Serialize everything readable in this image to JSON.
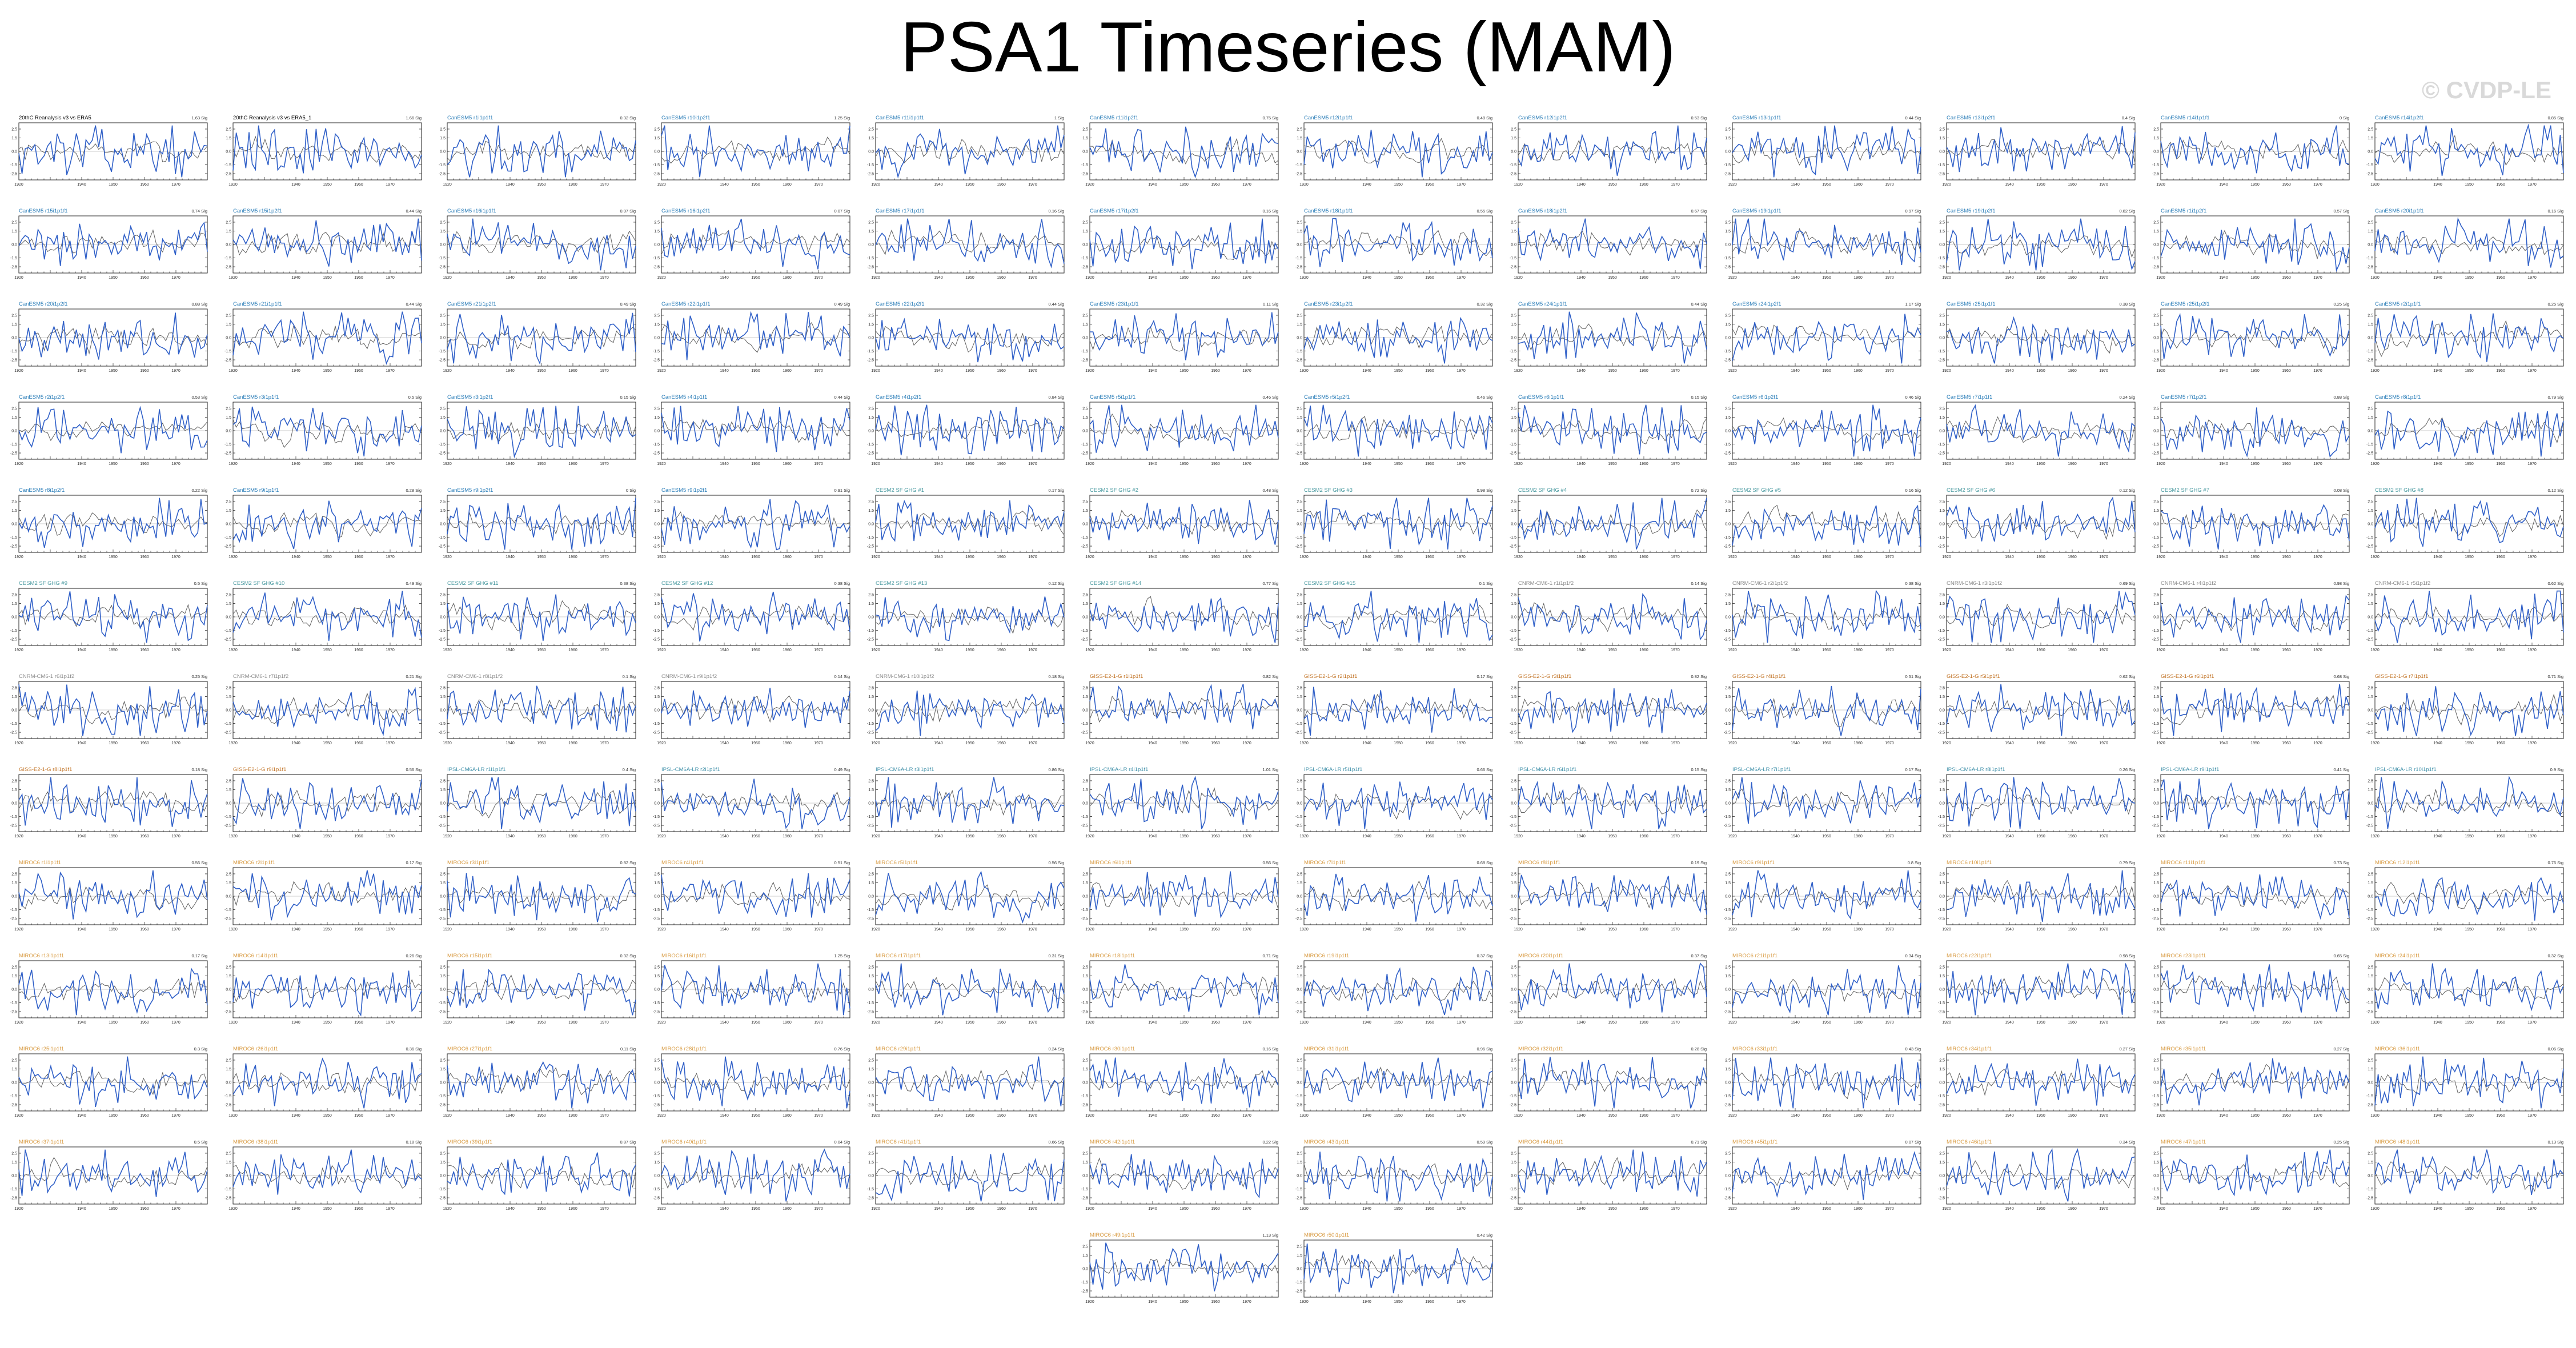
{
  "page": {
    "title": "PSA1 Timeseries (MAM)",
    "watermark": "© CVDP-LE"
  },
  "colors": {
    "model": "#3060c8",
    "obs": "#606060",
    "zero": "#999999",
    "title_obs": "#000000",
    "title_cesm": "#2a7db8",
    "title_cesm2": "#4a9aa0",
    "title_cmip": "#8a8a8a",
    "title_gfdl": "#c07020",
    "title_ipsl": "#3e8fa8",
    "title_miroc": "#d89a40"
  },
  "chart_data": {
    "type": "line",
    "title": "PSA1 Timeseries (MAM)",
    "x_ticks": [
      "1920",
      "1940",
      "1950",
      "1960",
      "1970"
    ],
    "y_ticks": [
      "2.5",
      "1.5",
      "0.0",
      "-1.5",
      "-2.5"
    ],
    "xlim": [
      1920,
      1980
    ],
    "ylim": [
      -3.2,
      3.2
    ],
    "series_note": "",
    "panels": [
      {
        "title": "20thC Reanalysis v3 vs ERA5",
        "label": "1.63 Sig",
        "group": "obs"
      },
      {
        "title": "20thC Reanalysis v3 vs ERA5_1",
        "label": "1.66 Sig",
        "group": "obs"
      },
      {
        "title": "CanESM5 r1i1p1f1",
        "label": "0.32 Sig",
        "group": "cesm"
      },
      {
        "title": "CanESM5 r10i1p2f1",
        "label": "1.25 Sig",
        "group": "cesm"
      },
      {
        "title": "CanESM5 r11i1p1f1",
        "label": "1 Sig",
        "group": "cesm"
      },
      {
        "title": "CanESM5 r11i1p2f1",
        "label": "0.75 Sig",
        "group": "cesm"
      },
      {
        "title": "CanESM5 r12i1p1f1",
        "label": "0.48 Sig",
        "group": "cesm"
      },
      {
        "title": "CanESM5 r12i1p2f1",
        "label": "0.53 Sig",
        "group": "cesm"
      },
      {
        "title": "CanESM5 r13i1p1f1",
        "label": "0.44 Sig",
        "group": "cesm"
      },
      {
        "title": "CanESM5 r13i1p2f1",
        "label": "0.4 Sig",
        "group": "cesm"
      },
      {
        "title": "CanESM5 r14i1p1f1",
        "label": "0 Sig",
        "group": "cesm"
      },
      {
        "title": "CanESM5 r14i1p2f1",
        "label": "0.85 Sig",
        "group": "cesm"
      },
      {
        "title": "CanESM5 r15i1p1f1",
        "label": "0.74 Sig",
        "group": "cesm"
      },
      {
        "title": "CanESM5 r15i1p2f1",
        "label": "0.44 Sig",
        "group": "cesm"
      },
      {
        "title": "CanESM5 r16i1p1f1",
        "label": "0.07 Sig",
        "group": "cesm"
      },
      {
        "title": "CanESM5 r16i1p2f1",
        "label": "0.07 Sig",
        "group": "cesm"
      },
      {
        "title": "CanESM5 r17i1p1f1",
        "label": "0.16 Sig",
        "group": "cesm"
      },
      {
        "title": "CanESM5 r17i1p2f1",
        "label": "0.16 Sig",
        "group": "cesm"
      },
      {
        "title": "CanESM5 r18i1p1f1",
        "label": "0.55 Sig",
        "group": "cesm"
      },
      {
        "title": "CanESM5 r18i1p2f1",
        "label": "0.67 Sig",
        "group": "cesm"
      },
      {
        "title": "CanESM5 r19i1p1f1",
        "label": "0.97 Sig",
        "group": "cesm"
      },
      {
        "title": "CanESM5 r19i1p2f1",
        "label": "0.82 Sig",
        "group": "cesm"
      },
      {
        "title": "CanESM5 r1i1p2f1",
        "label": "0.57 Sig",
        "group": "cesm"
      },
      {
        "title": "CanESM5 r20i1p1f1",
        "label": "0.16 Sig",
        "group": "cesm"
      },
      {
        "title": "CanESM5 r20i1p2f1",
        "label": "0.88 Sig",
        "group": "cesm"
      },
      {
        "title": "CanESM5 r21i1p1f1",
        "label": "0.44 Sig",
        "group": "cesm"
      },
      {
        "title": "CanESM5 r21i1p2f1",
        "label": "0.49 Sig",
        "group": "cesm"
      },
      {
        "title": "CanESM5 r22i1p1f1",
        "label": "0.49 Sig",
        "group": "cesm"
      },
      {
        "title": "CanESM5 r22i1p2f1",
        "label": "0.44 Sig",
        "group": "cesm"
      },
      {
        "title": "CanESM5 r23i1p1f1",
        "label": "0.11 Sig",
        "group": "cesm"
      },
      {
        "title": "CanESM5 r23i1p2f1",
        "label": "0.32 Sig",
        "group": "cesm"
      },
      {
        "title": "CanESM5 r24i1p1f1",
        "label": "0.44 Sig",
        "group": "cesm"
      },
      {
        "title": "CanESM5 r24i1p2f1",
        "label": "1.17 Sig",
        "group": "cesm"
      },
      {
        "title": "CanESM5 r25i1p1f1",
        "label": "0.38 Sig",
        "group": "cesm"
      },
      {
        "title": "CanESM5 r25i1p2f1",
        "label": "0.25 Sig",
        "group": "cesm"
      },
      {
        "title": "CanESM5 r2i1p1f1",
        "label": "0.25 Sig",
        "group": "cesm"
      },
      {
        "title": "CanESM5 r2i1p2f1",
        "label": "0.53 Sig",
        "group": "cesm"
      },
      {
        "title": "CanESM5 r3i1p1f1",
        "label": "0.5 Sig",
        "group": "cesm"
      },
      {
        "title": "CanESM5 r3i1p2f1",
        "label": "0.15 Sig",
        "group": "cesm"
      },
      {
        "title": "CanESM5 r4i1p1f1",
        "label": "0.44 Sig",
        "group": "cesm"
      },
      {
        "title": "CanESM5 r4i1p2f1",
        "label": "0.84 Sig",
        "group": "cesm"
      },
      {
        "title": "CanESM5 r5i1p1f1",
        "label": "0.46 Sig",
        "group": "cesm"
      },
      {
        "title": "CanESM5 r5i1p2f1",
        "label": "0.46 Sig",
        "group": "cesm"
      },
      {
        "title": "CanESM5 r6i1p1f1",
        "label": "0.15 Sig",
        "group": "cesm"
      },
      {
        "title": "CanESM5 r6i1p2f1",
        "label": "0.46 Sig",
        "group": "cesm"
      },
      {
        "title": "CanESM5 r7i1p1f1",
        "label": "0.24 Sig",
        "group": "cesm"
      },
      {
        "title": "CanESM5 r7i1p2f1",
        "label": "0.88 Sig",
        "group": "cesm"
      },
      {
        "title": "CanESM5 r8i1p1f1",
        "label": "0.79 Sig",
        "group": "cesm"
      },
      {
        "title": "CanESM5 r8i1p2f1",
        "label": "0.22 Sig",
        "group": "cesm"
      },
      {
        "title": "CanESM5 r9i1p1f1",
        "label": "0.28 Sig",
        "group": "cesm"
      },
      {
        "title": "CanESM5 r9i1p2f1",
        "label": "0 Sig",
        "group": "cesm"
      },
      {
        "title": "CanESM5 r9i1p2f1",
        "label": "0.91 Sig",
        "group": "cesm"
      },
      {
        "title": "CESM2 SF GHG #1",
        "label": "0.17 Sig",
        "group": "cesm2"
      },
      {
        "title": "CESM2 SF GHG #2",
        "label": "0.48 Sig",
        "group": "cesm2"
      },
      {
        "title": "CESM2 SF GHG #3",
        "label": "0.98 Sig",
        "group": "cesm2"
      },
      {
        "title": "CESM2 SF GHG #4",
        "label": "0.72 Sig",
        "group": "cesm2"
      },
      {
        "title": "CESM2 SF GHG #5",
        "label": "0.16 Sig",
        "group": "cesm2"
      },
      {
        "title": "CESM2 SF GHG #6",
        "label": "0.12 Sig",
        "group": "cesm2"
      },
      {
        "title": "CESM2 SF GHG #7",
        "label": "0.08 Sig",
        "group": "cesm2"
      },
      {
        "title": "CESM2 SF GHG #8",
        "label": "0.12 Sig",
        "group": "cesm2"
      },
      {
        "title": "CESM2 SF GHG #9",
        "label": "0.5 Sig",
        "group": "cesm2"
      },
      {
        "title": "CESM2 SF GHG #10",
        "label": "0.49 Sig",
        "group": "cesm2"
      },
      {
        "title": "CESM2 SF GHG #11",
        "label": "0.38 Sig",
        "group": "cesm2"
      },
      {
        "title": "CESM2 SF GHG #12",
        "label": "0.38 Sig",
        "group": "cesm2"
      },
      {
        "title": "CESM2 SF GHG #13",
        "label": "0.12 Sig",
        "group": "cesm2"
      },
      {
        "title": "CESM2 SF GHG #14",
        "label": "0.77 Sig",
        "group": "cesm2"
      },
      {
        "title": "CESM2 SF GHG #15",
        "label": "0.1 Sig",
        "group": "cesm2"
      },
      {
        "title": "CNRM-CM6-1 r1i1p1f2",
        "label": "0.14 Sig",
        "group": "cmip"
      },
      {
        "title": "CNRM-CM6-1 r2i1p1f2",
        "label": "0.38 Sig",
        "group": "cmip"
      },
      {
        "title": "CNRM-CM6-1 r3i1p1f2",
        "label": "0.69 Sig",
        "group": "cmip"
      },
      {
        "title": "CNRM-CM6-1 r4i1p1f2",
        "label": "0.98 Sig",
        "group": "cmip"
      },
      {
        "title": "CNRM-CM6-1 r5i1p1f2",
        "label": "0.62 Sig",
        "group": "cmip"
      },
      {
        "title": "CNRM-CM6-1 r6i1p1f2",
        "label": "0.25 Sig",
        "group": "cmip"
      },
      {
        "title": "CNRM-CM6-1 r7i1p1f2",
        "label": "0.21 Sig",
        "group": "cmip"
      },
      {
        "title": "CNRM-CM6-1 r8i1p1f2",
        "label": "0.1 Sig",
        "group": "cmip"
      },
      {
        "title": "CNRM-CM6-1 r9i1p1f2",
        "label": "0.14 Sig",
        "group": "cmip"
      },
      {
        "title": "CNRM-CM6-1 r10i1p1f2",
        "label": "0.18 Sig",
        "group": "cmip"
      },
      {
        "title": "GISS-E2-1-G r1i1p1f1",
        "label": "0.82 Sig",
        "group": "gfdl"
      },
      {
        "title": "GISS-E2-1-G r2i1p1f1",
        "label": "0.17 Sig",
        "group": "gfdl"
      },
      {
        "title": "GISS-E2-1-G r3i1p1f1",
        "label": "0.82 Sig",
        "group": "gfdl"
      },
      {
        "title": "GISS-E2-1-G r4i1p1f1",
        "label": "0.51 Sig",
        "group": "gfdl"
      },
      {
        "title": "GISS-E2-1-G r5i1p1f1",
        "label": "0.62 Sig",
        "group": "gfdl"
      },
      {
        "title": "GISS-E2-1-G r6i1p1f1",
        "label": "0.68 Sig",
        "group": "gfdl"
      },
      {
        "title": "GISS-E2-1-G r7i1p1f1",
        "label": "0.71 Sig",
        "group": "gfdl"
      },
      {
        "title": "GISS-E2-1-G r8i1p1f1",
        "label": "0.18 Sig",
        "group": "gfdl"
      },
      {
        "title": "GISS-E2-1-G r9i1p1f1",
        "label": "0.56 Sig",
        "group": "gfdl"
      },
      {
        "title": "IPSL-CM6A-LR r1i1p1f1",
        "label": "0.4 Sig",
        "group": "ipsl"
      },
      {
        "title": "IPSL-CM6A-LR r2i1p1f1",
        "label": "0.49 Sig",
        "group": "ipsl"
      },
      {
        "title": "IPSL-CM6A-LR r3i1p1f1",
        "label": "0.86 Sig",
        "group": "ipsl"
      },
      {
        "title": "IPSL-CM6A-LR r4i1p1f1",
        "label": "1.01 Sig",
        "group": "ipsl"
      },
      {
        "title": "IPSL-CM6A-LR r5i1p1f1",
        "label": "0.66 Sig",
        "group": "ipsl"
      },
      {
        "title": "IPSL-CM6A-LR r6i1p1f1",
        "label": "0.15 Sig",
        "group": "ipsl"
      },
      {
        "title": "IPSL-CM6A-LR r7i1p1f1",
        "label": "0.17 Sig",
        "group": "ipsl"
      },
      {
        "title": "IPSL-CM6A-LR r8i1p1f1",
        "label": "0.26 Sig",
        "group": "ipsl"
      },
      {
        "title": "IPSL-CM6A-LR r9i1p1f1",
        "label": "0.41 Sig",
        "group": "ipsl"
      },
      {
        "title": "IPSL-CM6A-LR r10i1p1f1",
        "label": "0.9 Sig",
        "group": "ipsl"
      },
      {
        "title": "MIROC6 r1i1p1f1",
        "label": "0.56 Sig",
        "group": "miroc"
      },
      {
        "title": "MIROC6 r2i1p1f1",
        "label": "0.17 Sig",
        "group": "miroc"
      },
      {
        "title": "MIROC6 r3i1p1f1",
        "label": "0.82 Sig",
        "group": "miroc"
      },
      {
        "title": "MIROC6 r4i1p1f1",
        "label": "0.51 Sig",
        "group": "miroc"
      },
      {
        "title": "MIROC6 r5i1p1f1",
        "label": "0.56 Sig",
        "group": "miroc"
      },
      {
        "title": "MIROC6 r6i1p1f1",
        "label": "0.56 Sig",
        "group": "miroc"
      },
      {
        "title": "MIROC6 r7i1p1f1",
        "label": "0.68 Sig",
        "group": "miroc"
      },
      {
        "title": "MIROC6 r8i1p1f1",
        "label": "0.19 Sig",
        "group": "miroc"
      },
      {
        "title": "MIROC6 r9i1p1f1",
        "label": "0.8 Sig",
        "group": "miroc"
      },
      {
        "title": "MIROC6 r10i1p1f1",
        "label": "0.79 Sig",
        "group": "miroc"
      },
      {
        "title": "MIROC6 r11i1p1f1",
        "label": "0.73 Sig",
        "group": "miroc"
      },
      {
        "title": "MIROC6 r12i1p1f1",
        "label": "0.76 Sig",
        "group": "miroc"
      },
      {
        "title": "MIROC6 r13i1p1f1",
        "label": "0.17 Sig",
        "group": "miroc"
      },
      {
        "title": "MIROC6 r14i1p1f1",
        "label": "0.26 Sig",
        "group": "miroc"
      },
      {
        "title": "MIROC6 r15i1p1f1",
        "label": "0.32 Sig",
        "group": "miroc"
      },
      {
        "title": "MIROC6 r16i1p1f1",
        "label": "1.25 Sig",
        "group": "miroc"
      },
      {
        "title": "MIROC6 r17i1p1f1",
        "label": "0.31 Sig",
        "group": "miroc"
      },
      {
        "title": "MIROC6 r18i1p1f1",
        "label": "0.71 Sig",
        "group": "miroc"
      },
      {
        "title": "MIROC6 r19i1p1f1",
        "label": "0.37 Sig",
        "group": "miroc"
      },
      {
        "title": "MIROC6 r20i1p1f1",
        "label": "0.37 Sig",
        "group": "miroc"
      },
      {
        "title": "MIROC6 r21i1p1f1",
        "label": "0.34 Sig",
        "group": "miroc"
      },
      {
        "title": "MIROC6 r22i1p1f1",
        "label": "0.98 Sig",
        "group": "miroc"
      },
      {
        "title": "MIROC6 r23i1p1f1",
        "label": "0.65 Sig",
        "group": "miroc"
      },
      {
        "title": "MIROC6 r24i1p1f1",
        "label": "0.32 Sig",
        "group": "miroc"
      },
      {
        "title": "MIROC6 r25i1p1f1",
        "label": "0.3 Sig",
        "group": "miroc"
      },
      {
        "title": "MIROC6 r26i1p1f1",
        "label": "0.36 Sig",
        "group": "miroc"
      },
      {
        "title": "MIROC6 r27i1p1f1",
        "label": "0.11 Sig",
        "group": "miroc"
      },
      {
        "title": "MIROC6 r28i1p1f1",
        "label": "0.76 Sig",
        "group": "miroc"
      },
      {
        "title": "MIROC6 r29i1p1f1",
        "label": "0.24 Sig",
        "group": "miroc"
      },
      {
        "title": "MIROC6 r30i1p1f1",
        "label": "0.16 Sig",
        "group": "miroc"
      },
      {
        "title": "MIROC6 r31i1p1f1",
        "label": "0.96 Sig",
        "group": "miroc"
      },
      {
        "title": "MIROC6 r32i1p1f1",
        "label": "0.28 Sig",
        "group": "miroc"
      },
      {
        "title": "MIROC6 r33i1p1f1",
        "label": "0.43 Sig",
        "group": "miroc"
      },
      {
        "title": "MIROC6 r34i1p1f1",
        "label": "0.27 Sig",
        "group": "miroc"
      },
      {
        "title": "MIROC6 r35i1p1f1",
        "label": "0.27 Sig",
        "group": "miroc"
      },
      {
        "title": "MIROC6 r36i1p1f1",
        "label": "0.06 Sig",
        "group": "miroc"
      },
      {
        "title": "MIROC6 r37i1p1f1",
        "label": "0.5 Sig",
        "group": "miroc"
      },
      {
        "title": "MIROC6 r38i1p1f1",
        "label": "0.18 Sig",
        "group": "miroc"
      },
      {
        "title": "MIROC6 r39i1p1f1",
        "label": "0.87 Sig",
        "group": "miroc"
      },
      {
        "title": "MIROC6 r40i1p1f1",
        "label": "0.04 Sig",
        "group": "miroc"
      },
      {
        "title": "MIROC6 r41i1p1f1",
        "label": "0.66 Sig",
        "group": "miroc"
      },
      {
        "title": "MIROC6 r42i1p1f1",
        "label": "0.22 Sig",
        "group": "miroc"
      },
      {
        "title": "MIROC6 r43i1p1f1",
        "label": "0.59 Sig",
        "group": "miroc"
      },
      {
        "title": "MIROC6 r44i1p1f1",
        "label": "0.71 Sig",
        "group": "miroc"
      },
      {
        "title": "MIROC6 r45i1p1f1",
        "label": "0.07 Sig",
        "group": "miroc"
      },
      {
        "title": "MIROC6 r46i1p1f1",
        "label": "0.34 Sig",
        "group": "miroc"
      },
      {
        "title": "MIROC6 r47i1p1f1",
        "label": "0.25 Sig",
        "group": "miroc"
      },
      {
        "title": "MIROC6 r48i1p1f1",
        "label": "0.13 Sig",
        "group": "miroc"
      },
      {
        "title": "MIROC6 r49i1p1f1",
        "label": "1.13 Sig",
        "group": "miroc"
      },
      {
        "title": "MIROC6 r50i1p1f1",
        "label": "0.42 Sig",
        "group": "miroc"
      }
    ]
  }
}
